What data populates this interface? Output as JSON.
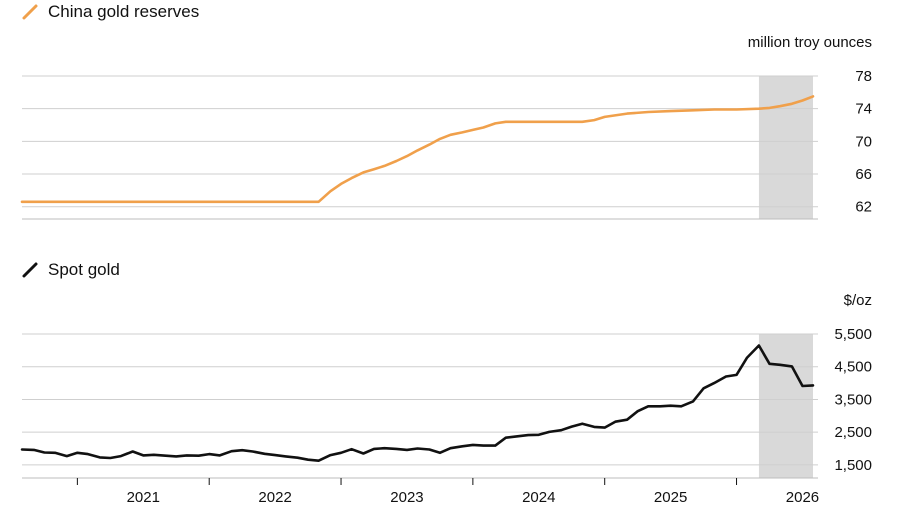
{
  "chart_data": [
    {
      "type": "line",
      "legend": "China gold reserves",
      "unit": "million troy ounces",
      "color": "#f0a04b",
      "yticks": [
        62,
        66,
        70,
        74,
        78
      ],
      "ylim": [
        60.5,
        78
      ],
      "xlim": [
        2020.58,
        2026.58
      ],
      "highlight_x": [
        2026.17,
        2026.58
      ],
      "series": [
        {
          "x": [
            2020.58,
            2021.0,
            2021.5,
            2022.0,
            2022.5,
            2022.83,
            2022.92,
            2023.0,
            2023.08,
            2023.17,
            2023.25,
            2023.33,
            2023.42,
            2023.5,
            2023.58,
            2023.67,
            2023.75,
            2023.83,
            2023.92,
            2024.0,
            2024.08,
            2024.17,
            2024.25,
            2024.33,
            2024.5,
            2024.67,
            2024.75,
            2024.83,
            2024.92,
            2025.0,
            2025.17,
            2025.33,
            2025.5,
            2025.67,
            2025.83,
            2026.0,
            2026.17,
            2026.25,
            2026.33,
            2026.42,
            2026.5,
            2026.58
          ],
          "y": [
            62.6,
            62.6,
            62.6,
            62.6,
            62.6,
            62.6,
            63.9,
            64.8,
            65.5,
            66.2,
            66.6,
            67.0,
            67.6,
            68.2,
            68.9,
            69.6,
            70.3,
            70.8,
            71.1,
            71.4,
            71.7,
            72.2,
            72.4,
            72.4,
            72.4,
            72.4,
            72.4,
            72.4,
            72.6,
            73.0,
            73.4,
            73.6,
            73.7,
            73.8,
            73.9,
            73.9,
            74.0,
            74.1,
            74.3,
            74.6,
            75.0,
            75.5
          ]
        }
      ]
    },
    {
      "type": "line",
      "legend": "Spot gold",
      "unit": "$/oz",
      "color": "#111111",
      "yticks": [
        "1,500",
        "2,500",
        "3,500",
        "4,500",
        "5,500"
      ],
      "ytick_values": [
        1500,
        2500,
        3500,
        4500,
        5500
      ],
      "ylim": [
        1100,
        5500
      ],
      "xlim": [
        2020.58,
        2026.58
      ],
      "xticks": [
        "2021",
        "2022",
        "2023",
        "2024",
        "2025",
        "2026"
      ],
      "highlight_x": [
        2026.17,
        2026.58
      ],
      "series": [
        {
          "x": [
            2020.58,
            2020.67,
            2020.75,
            2020.83,
            2020.92,
            2021.0,
            2021.08,
            2021.17,
            2021.25,
            2021.33,
            2021.42,
            2021.5,
            2021.58,
            2021.67,
            2021.75,
            2021.83,
            2021.92,
            2022.0,
            2022.08,
            2022.17,
            2022.25,
            2022.33,
            2022.42,
            2022.5,
            2022.58,
            2022.67,
            2022.75,
            2022.83,
            2022.92,
            2023.0,
            2023.08,
            2023.17,
            2023.25,
            2023.33,
            2023.42,
            2023.5,
            2023.58,
            2023.67,
            2023.75,
            2023.83,
            2023.92,
            2024.0,
            2024.08,
            2024.17,
            2024.25,
            2024.33,
            2024.42,
            2024.5,
            2024.58,
            2024.67,
            2024.75,
            2024.83,
            2024.92,
            2025.0,
            2025.08,
            2025.17,
            2025.25,
            2025.33,
            2025.42,
            2025.5,
            2025.58,
            2025.67,
            2025.75,
            2025.83,
            2025.92,
            2026.0,
            2026.08,
            2026.17,
            2026.25,
            2026.33,
            2026.42,
            2026.5,
            2026.58
          ],
          "y": [
            1970,
            1960,
            1880,
            1870,
            1770,
            1870,
            1830,
            1730,
            1710,
            1770,
            1910,
            1790,
            1810,
            1780,
            1760,
            1790,
            1780,
            1830,
            1790,
            1920,
            1950,
            1910,
            1840,
            1800,
            1760,
            1720,
            1660,
            1630,
            1800,
            1870,
            1980,
            1850,
            1990,
            2010,
            1990,
            1960,
            2000,
            1970,
            1870,
            2010,
            2070,
            2110,
            2090,
            2090,
            2330,
            2370,
            2410,
            2420,
            2510,
            2560,
            2670,
            2760,
            2660,
            2640,
            2820,
            2880,
            3140,
            3290,
            3290,
            3310,
            3290,
            3440,
            3840,
            4000,
            4200,
            4250,
            4780,
            5150,
            4590,
            4560,
            4510,
            3910,
            3930
          ]
        }
      ]
    }
  ]
}
